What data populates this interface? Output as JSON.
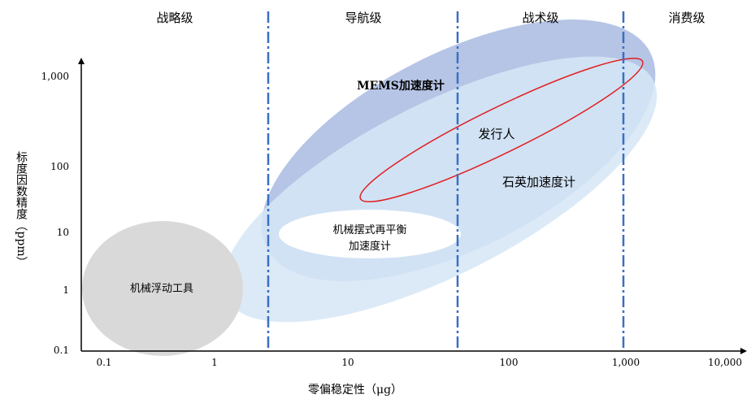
{
  "colors": {
    "divider": "#3a6fc4",
    "mems_fill": "#aebfe3",
    "quartz_fill": "#d6e6f6",
    "pendulum_fill": "#ffffff",
    "floating_fill": "#d9d9d9",
    "issuer_stroke": "#e02020",
    "axis": "#000000"
  },
  "grades": {
    "strategic": "战略级",
    "navigation": "导航级",
    "tactical": "战术级",
    "consumer": "消费级"
  },
  "y_axis": {
    "label": "标度因数精度（ppm）",
    "ticks": [
      "1,000",
      "100",
      "10",
      "1",
      "0.1"
    ]
  },
  "x_axis": {
    "label": "零偏稳定性（μg）",
    "ticks": [
      "0.1",
      "1",
      "10",
      "100",
      "1,000",
      "10,000"
    ]
  },
  "regions": {
    "mems": "MEMS加速度计",
    "quartz": "石英加速度计",
    "issuer": "发行人",
    "pendulum_line1": "机械摆式再平衡",
    "pendulum_line2": "加速度计",
    "floating": "机械浮动工具"
  }
}
